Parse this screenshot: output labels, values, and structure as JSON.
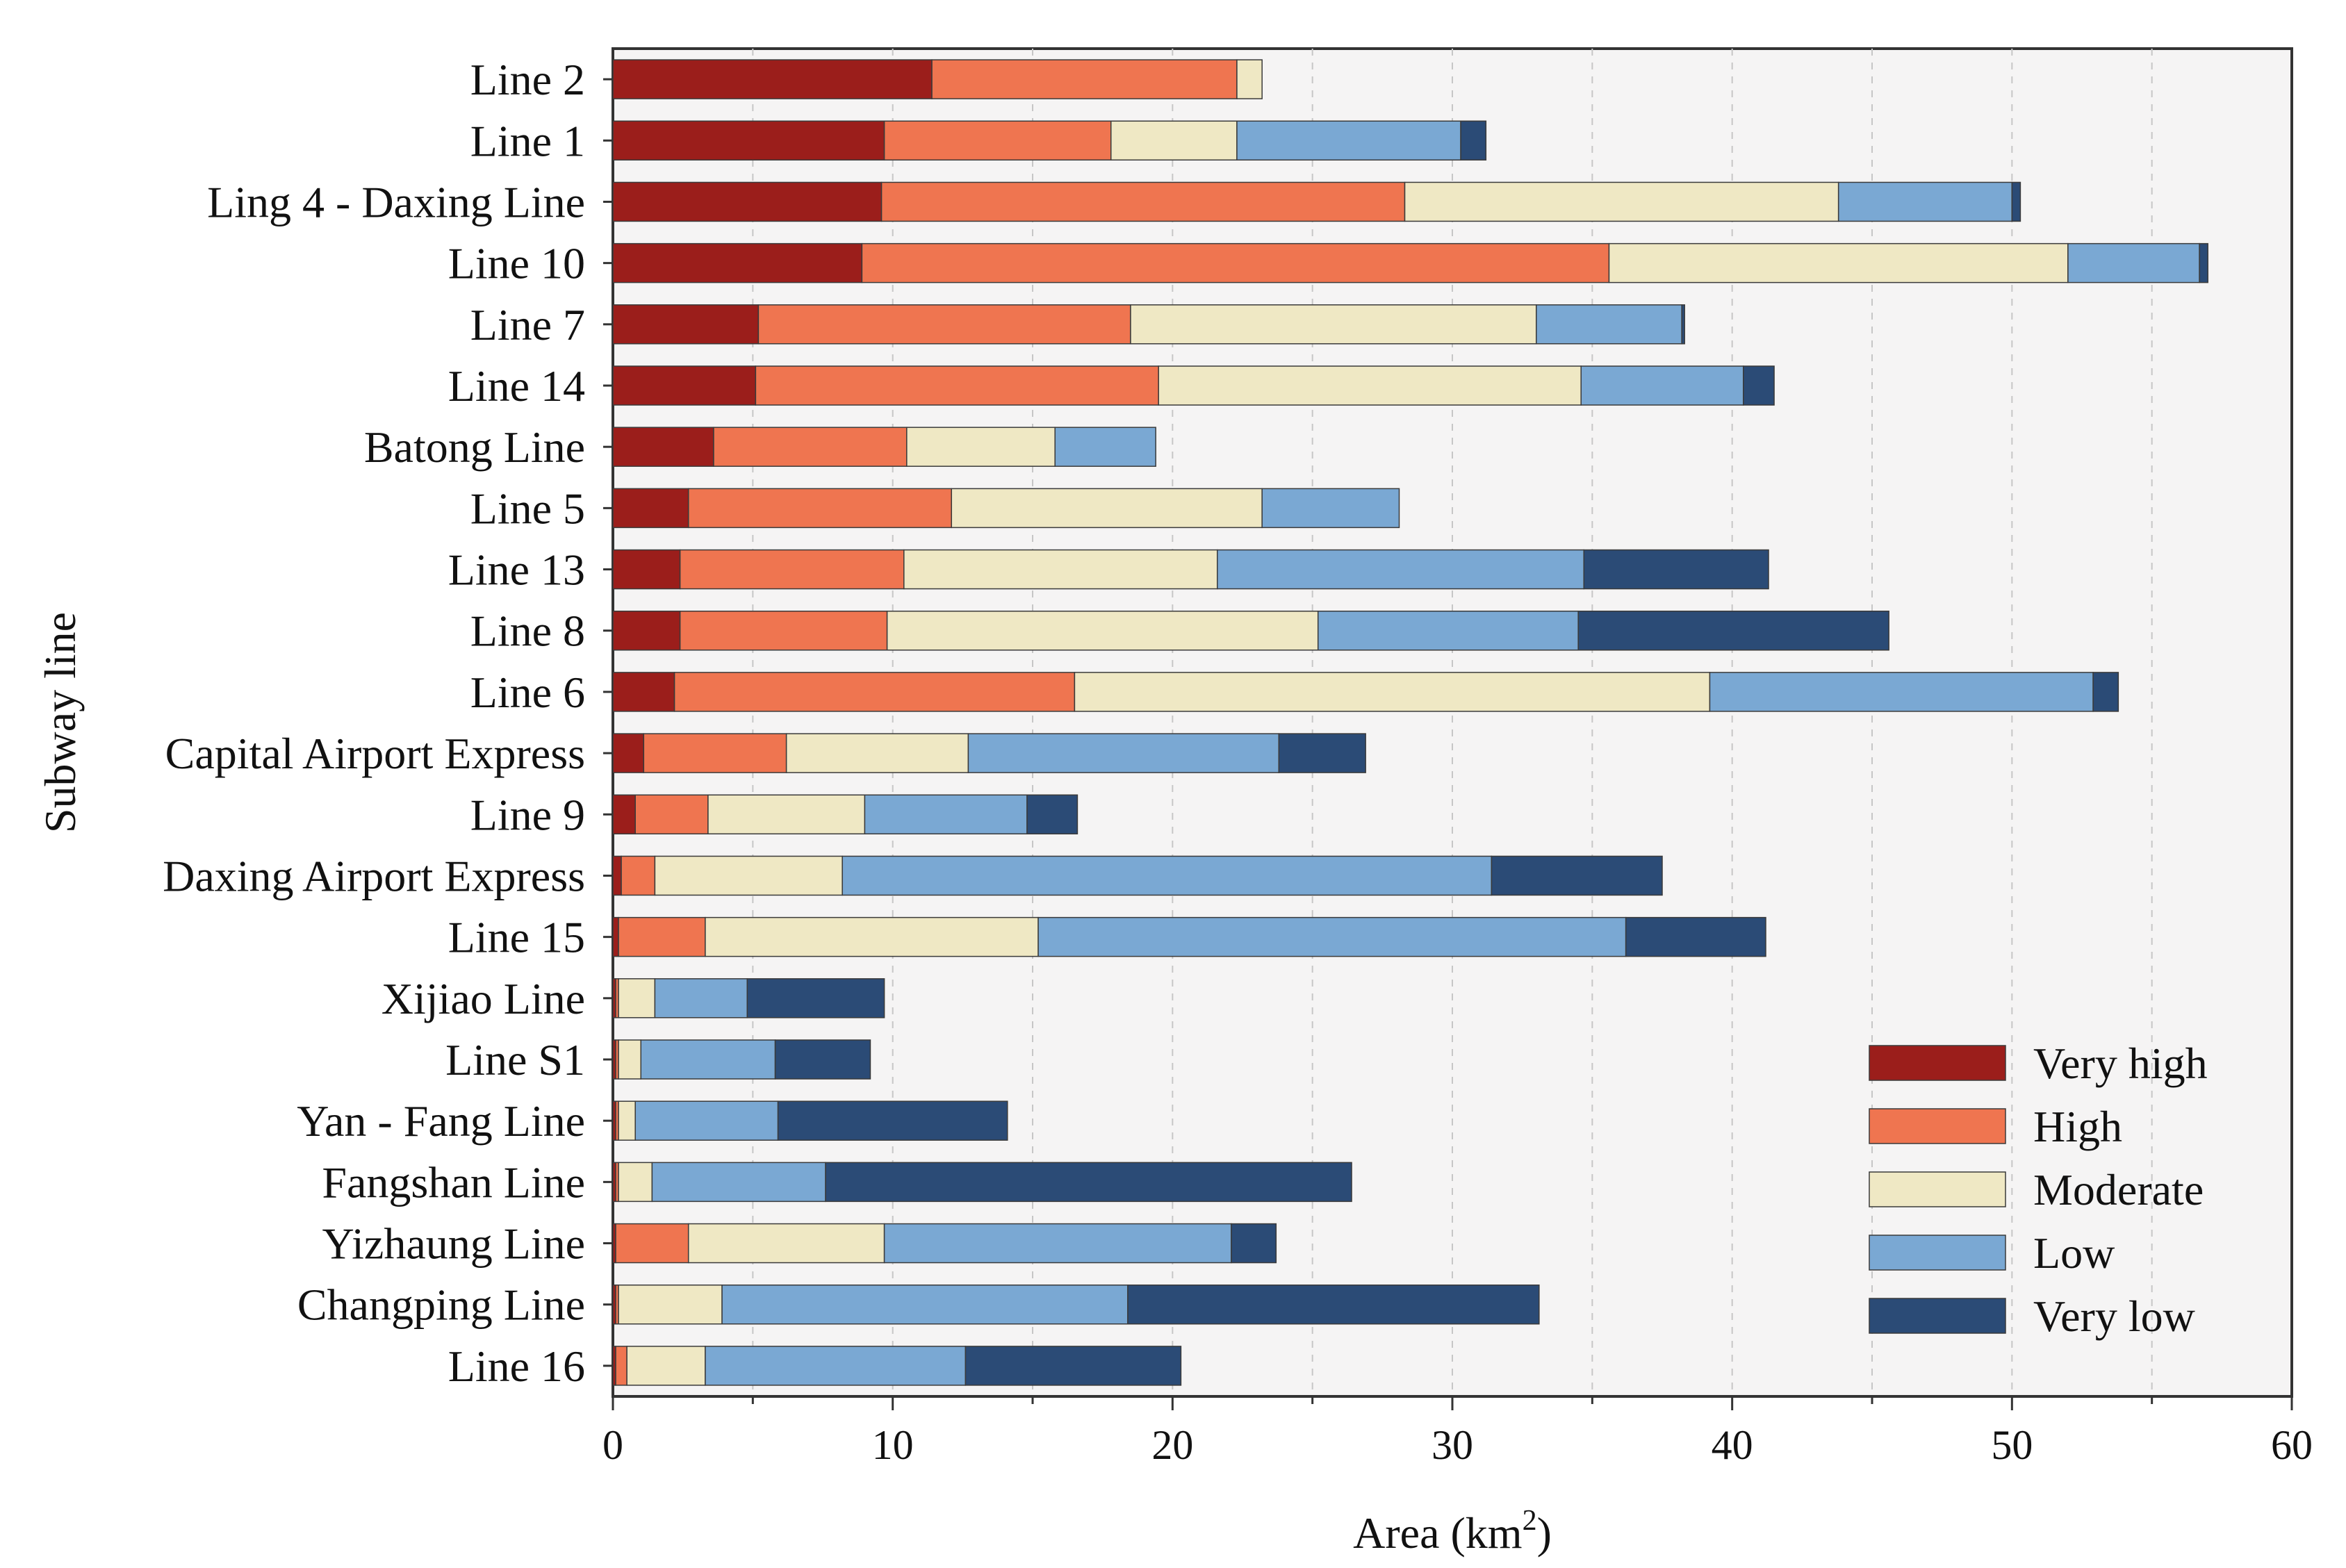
{
  "chart_data": {
    "type": "bar",
    "orientation": "horizontal",
    "stacked": true,
    "title": "",
    "xlabel": "Area (km",
    "xlabel_sup": "2",
    "xlabel_suffix": ")",
    "ylabel": "Subway line",
    "xlim": [
      0,
      60
    ],
    "xticks": [
      0,
      10,
      20,
      30,
      40,
      50,
      60
    ],
    "minor_xticks": [
      5,
      15,
      25,
      35,
      45,
      55
    ],
    "grid": "vertical dashed at 5 km intervals",
    "legend_position": "bottom-right",
    "categories": [
      "Line 2",
      "Line 1",
      "Ling 4 - Daxing Line",
      "Line 10",
      "Line 7",
      "Line 14",
      "Batong Line",
      "Line 5",
      "Line 13",
      "Line 8",
      "Line 6",
      "Capital Airport Express",
      "Line 9",
      "Daxing Airport Express",
      "Line 15",
      "Xijiao Line",
      "Line S1",
      "Yan - Fang Line",
      "Fangshan Line",
      "Yizhaung Line",
      "Changping Line",
      "Line 16"
    ],
    "series": [
      {
        "name": "Very high",
        "color": "#9b1e1b",
        "values": [
          11.4,
          9.7,
          9.6,
          8.9,
          5.2,
          5.1,
          3.6,
          2.7,
          2.4,
          2.4,
          2.2,
          1.1,
          0.8,
          0.3,
          0.2,
          0.1,
          0.1,
          0.1,
          0.1,
          0.1,
          0.1,
          0.1
        ]
      },
      {
        "name": "High",
        "color": "#ef7550",
        "values": [
          10.9,
          8.1,
          18.7,
          26.7,
          13.3,
          14.4,
          6.9,
          9.4,
          8.0,
          7.4,
          14.3,
          5.1,
          2.6,
          1.2,
          3.1,
          0.1,
          0.1,
          0.1,
          0.1,
          2.6,
          0.1,
          0.4
        ]
      },
      {
        "name": "Moderate",
        "color": "#efe8c4",
        "values": [
          0.9,
          4.5,
          15.5,
          16.4,
          14.5,
          15.1,
          5.3,
          11.1,
          11.2,
          15.4,
          22.7,
          6.5,
          5.6,
          6.7,
          11.9,
          1.3,
          0.8,
          0.6,
          1.2,
          7.0,
          3.7,
          2.8
        ]
      },
      {
        "name": "Low",
        "color": "#7aa8d3",
        "values": [
          0,
          8.0,
          6.2,
          4.7,
          5.2,
          5.8,
          3.6,
          4.9,
          13.1,
          9.3,
          13.7,
          11.1,
          5.8,
          23.2,
          21.0,
          3.3,
          4.8,
          5.1,
          6.2,
          12.4,
          14.5,
          9.3
        ]
      },
      {
        "name": "Very low",
        "color": "#2b4b76",
        "values": [
          0,
          0.9,
          0.3,
          0.3,
          0.1,
          1.1,
          0,
          0,
          6.6,
          11.1,
          0.9,
          3.1,
          1.8,
          6.1,
          5.0,
          4.9,
          3.4,
          8.2,
          18.8,
          1.6,
          14.7,
          7.7
        ]
      }
    ]
  }
}
